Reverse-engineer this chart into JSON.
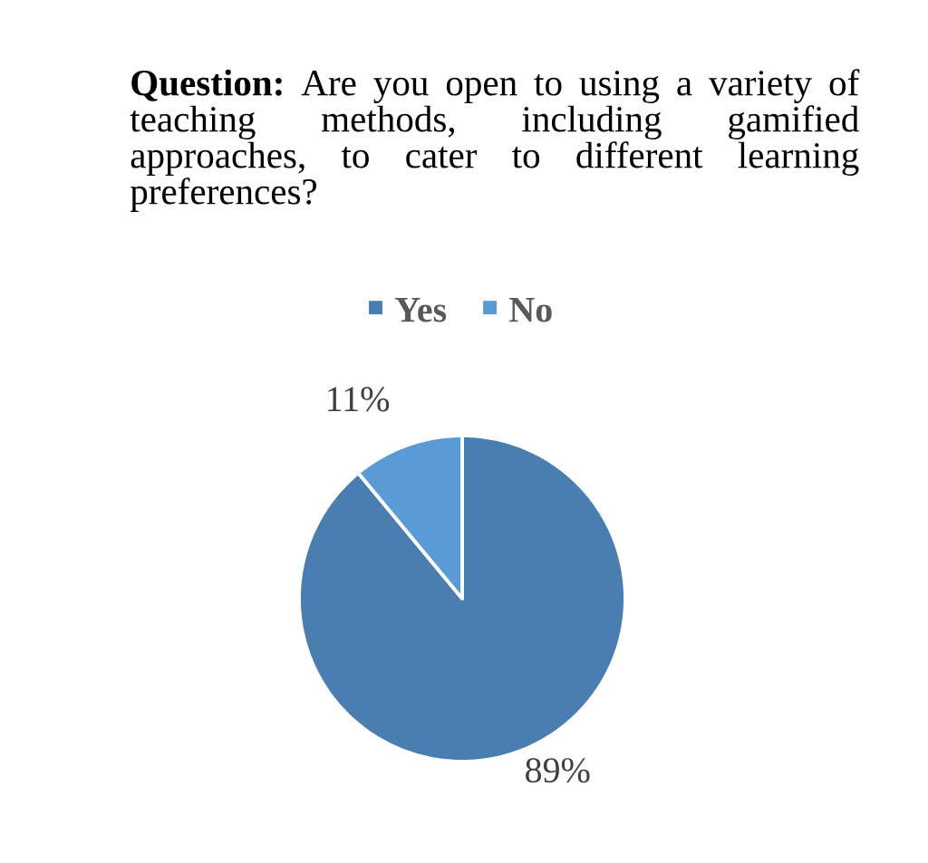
{
  "chart_data": {
    "type": "pie",
    "title": "**Question:** Are you open to using a variety of teaching methods, including gamified approaches, to cater to different learning preferences?",
    "categories": [
      "Yes",
      "No"
    ],
    "values": [
      89,
      11
    ],
    "colors": [
      "#4a7eb0",
      "#5b9bd5"
    ],
    "value_labels": [
      "89%",
      "11%"
    ],
    "legend": "top"
  }
}
